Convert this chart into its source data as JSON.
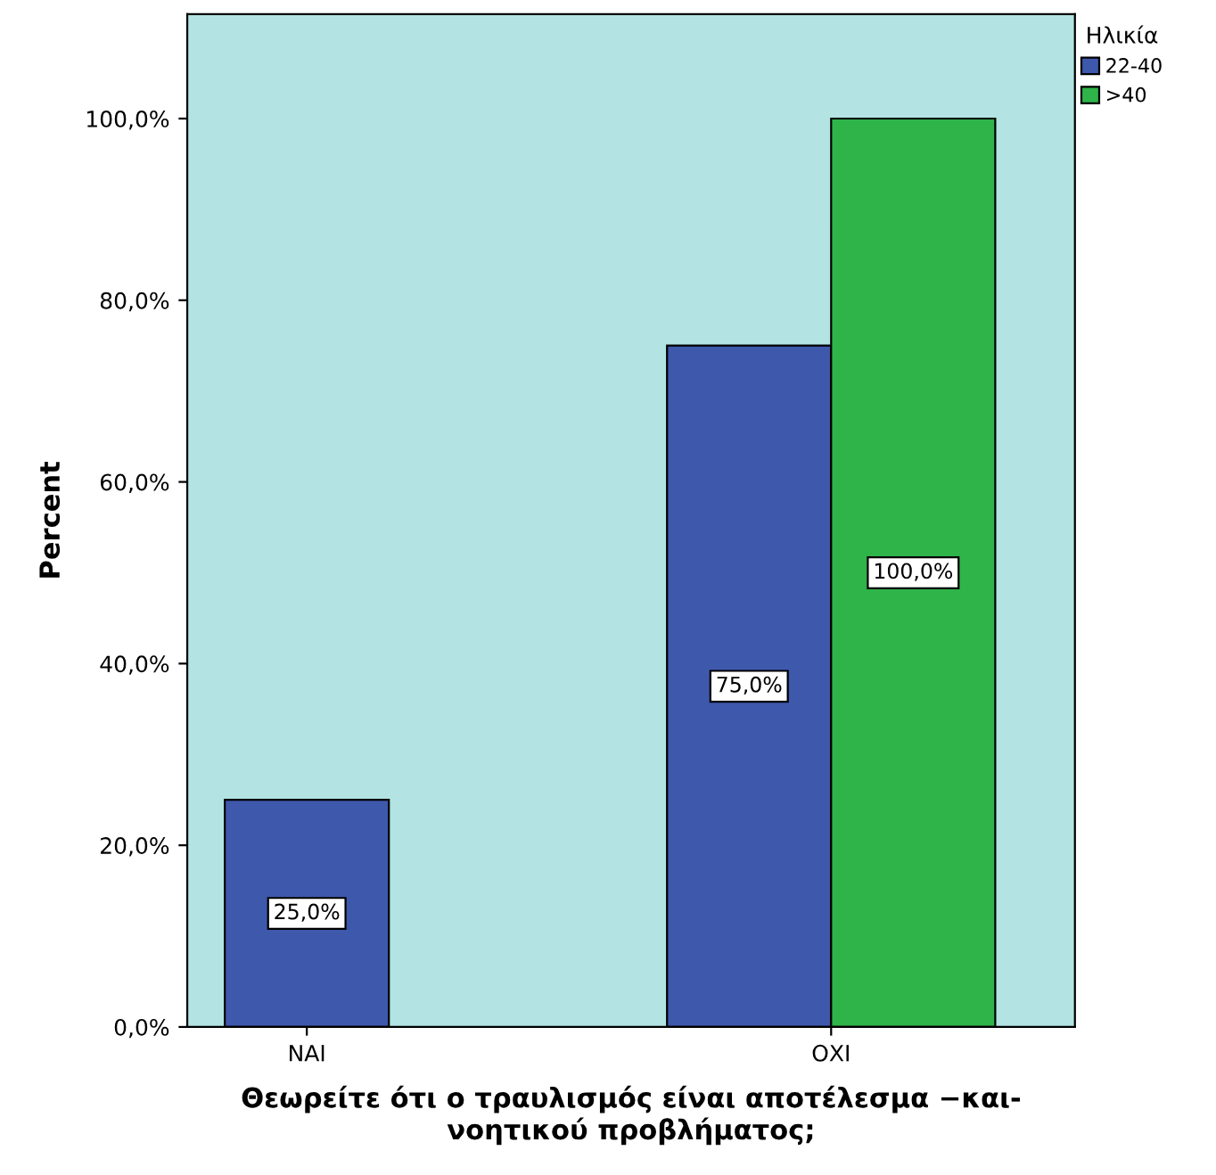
{
  "chart_data": {
    "type": "bar",
    "xlabel": "Θεωρείτε ότι ο τραυλισμός είναι αποτέλεσμα −και-\nνοητικού προβλήματος;",
    "ylabel": "Percent",
    "legend_title": "Ηλικία",
    "categories": [
      "ΝΑΙ",
      "ΟΧΙ"
    ],
    "series": [
      {
        "name": "22-40",
        "color": "#3e58ac",
        "values": [
          25,
          75
        ],
        "value_labels": [
          "25,0%",
          "75,0%"
        ]
      },
      {
        "name": ">40",
        "color": "#2fb44a",
        "values": [
          null,
          100
        ],
        "value_labels": [
          null,
          "100,0%"
        ]
      }
    ],
    "ylim": [
      0,
      111.5
    ],
    "yticks": [
      {
        "value": 0,
        "label": "0,0%"
      },
      {
        "value": 20,
        "label": "20,0%"
      },
      {
        "value": 40,
        "label": "40,0%"
      },
      {
        "value": 60,
        "label": "60,0%"
      },
      {
        "value": 80,
        "label": "80,0%"
      },
      {
        "value": 100,
        "label": "100,0%"
      }
    ],
    "grid": false,
    "legend": "top right"
  }
}
